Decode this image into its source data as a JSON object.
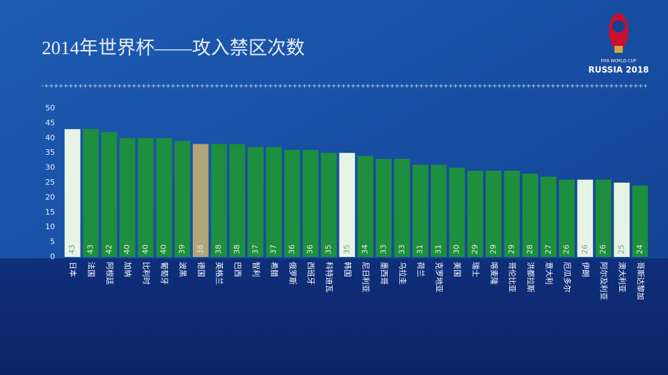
{
  "chart_data": {
    "type": "bar",
    "title": "2014年世界杯——攻入禁区次数",
    "logo_text": [
      "FIFA WORLD CUP",
      "RUSSIA 2018"
    ],
    "categories": [
      "日本",
      "法国",
      "阿根廷",
      "加纳",
      "比利时",
      "葡萄牙",
      "波黑",
      "德国",
      "英格兰",
      "巴西",
      "智利",
      "希腊",
      "俄罗斯",
      "西班牙",
      "科特迪瓦",
      "韩国",
      "尼日利亚",
      "墨西哥",
      "乌拉圭",
      "荷兰",
      "克罗地亚",
      "美国",
      "瑞士",
      "喀麦隆",
      "哥伦比亚",
      "洪都拉斯",
      "意大利",
      "厄瓜多尔",
      "伊朗",
      "阿尔及利亚",
      "澳大利亚",
      "哥斯达黎加"
    ],
    "values": [
      43,
      43,
      42,
      40,
      40,
      40,
      39,
      38,
      38,
      38,
      37,
      37,
      36,
      36,
      35,
      35,
      34,
      33,
      33,
      31,
      31,
      30,
      29,
      29,
      29,
      28,
      27,
      26,
      26,
      26,
      25,
      24
    ],
    "colors": [
      "#e6f4e6",
      "#1e8f3e",
      "#1e8f3e",
      "#1e8f3e",
      "#1e8f3e",
      "#1e8f3e",
      "#1e8f3e",
      "#b3a47a",
      "#1e8f3e",
      "#1e8f3e",
      "#1e8f3e",
      "#1e8f3e",
      "#1e8f3e",
      "#1e8f3e",
      "#1e8f3e",
      "#e6f4e6",
      "#1e8f3e",
      "#1e8f3e",
      "#1e8f3e",
      "#1e8f3e",
      "#1e8f3e",
      "#1e8f3e",
      "#1e8f3e",
      "#1e8f3e",
      "#1e8f3e",
      "#1e8f3e",
      "#1e8f3e",
      "#1e8f3e",
      "#e6f4e6",
      "#1e8f3e",
      "#e6f4e6",
      "#1e8f3e"
    ],
    "ylim": [
      0,
      50
    ],
    "yticks": [
      0,
      5,
      10,
      15,
      20,
      25,
      30,
      35,
      40,
      45,
      50
    ],
    "grid": false
  }
}
